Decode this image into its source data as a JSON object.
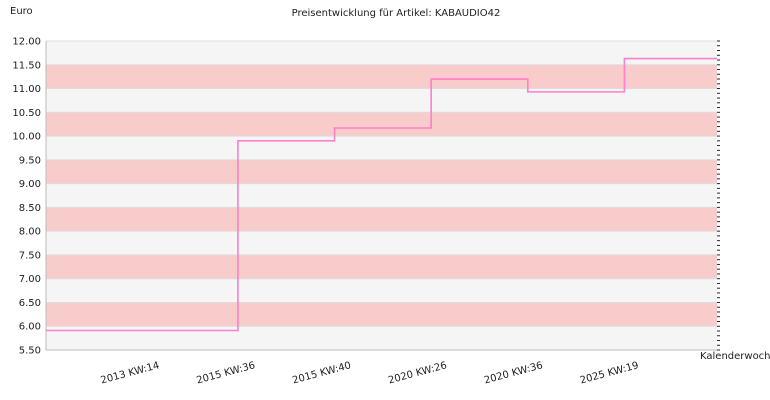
{
  "chart_data": {
    "type": "line",
    "title": "Preisentwicklung für Artikel: KABAUDIO42",
    "ylabel": "Euro",
    "xlabel": "Kalenderwoche",
    "ylim": [
      5.5,
      12.0
    ],
    "y_ticks": [
      "12.00",
      "11.50",
      "11.00",
      "10.50",
      "10.00",
      "9.50",
      "9.00",
      "8.50",
      "8.00",
      "7.50",
      "7.00",
      "6.50",
      "6.00",
      "5.50"
    ],
    "x_ticks": [
      "2013 KW:14",
      "2015 KW:36",
      "2015 KW:40",
      "2020 KW:26",
      "2020 KW:36",
      "2025 KW:19"
    ],
    "step": true,
    "series": [
      {
        "values": [
          5.91,
          9.9,
          10.17,
          11.2,
          10.93,
          11.63
        ]
      }
    ],
    "colors": {
      "line": "#ff7fc8",
      "band_alt": "#f9cccc",
      "band_base": "#f5f5f5",
      "grid": "#dddddd"
    },
    "grid": true
  }
}
